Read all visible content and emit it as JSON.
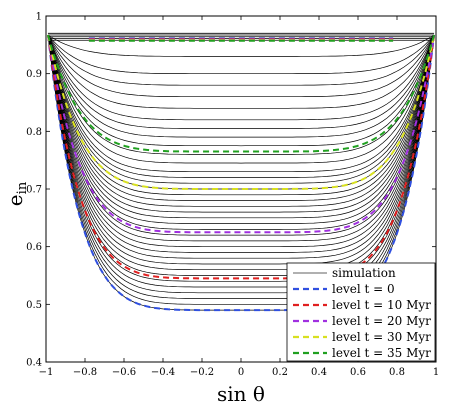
{
  "chart_data": {
    "type": "line",
    "xlabel": "sin θ",
    "ylabel": "e",
    "ylabel_sub": "in",
    "xlim": [
      -1,
      1
    ],
    "ylim": [
      0.4,
      1.0
    ],
    "xticks": [
      -1,
      -0.8,
      -0.6,
      -0.4,
      -0.2,
      0,
      0.2,
      0.4,
      0.6,
      0.8,
      1
    ],
    "xtick_labels": [
      "−1",
      "−0.8",
      "−0.6",
      "−0.4",
      "−0.2",
      "0",
      "0.2",
      "0.4",
      "0.6",
      "0.8",
      "1"
    ],
    "yticks": [
      0.4,
      0.5,
      0.6,
      0.7,
      0.8,
      0.9,
      1.0
    ],
    "ytick_labels": [
      "0.4",
      "0.5",
      "0.6",
      "0.7",
      "0.8",
      "0.9",
      "1"
    ],
    "grid": false,
    "legend_position": "bottom-right",
    "simulation_bottom_values": [
      0.49,
      0.5,
      0.51,
      0.52,
      0.53,
      0.54,
      0.55,
      0.56,
      0.57,
      0.58,
      0.59,
      0.6,
      0.61,
      0.62,
      0.63,
      0.64,
      0.65,
      0.66,
      0.67,
      0.68,
      0.69,
      0.7,
      0.71,
      0.72,
      0.73,
      0.745,
      0.76,
      0.775,
      0.79,
      0.805,
      0.82,
      0.84,
      0.86,
      0.88,
      0.9,
      0.93
    ],
    "series": [
      {
        "name": "simulation",
        "color": "#808080",
        "style": "solid"
      },
      {
        "name": "level t = 0",
        "color": "#3050e0",
        "style": "dashed",
        "bottom": 0.49
      },
      {
        "name": "level t = 10 Myr",
        "color": "#e02020",
        "style": "dashed",
        "bottom": 0.545
      },
      {
        "name": "level t = 20 Myr",
        "color": "#a030e0",
        "style": "dashed",
        "bottom": 0.625
      },
      {
        "name": "level t = 30 Myr",
        "color": "#d8e020",
        "style": "dashed",
        "bottom": 0.7
      },
      {
        "name": "level t = 35 Myr",
        "color": "#20a020",
        "style": "dashed",
        "bottom": 0.765
      }
    ],
    "legend_entries": [
      {
        "label": "simulation",
        "color": "#808080",
        "dashed": false
      },
      {
        "label": "level t = 0",
        "color": "#3050e0",
        "dashed": true
      },
      {
        "label": "level t = 10 Myr",
        "color": "#e02020",
        "dashed": true
      },
      {
        "label": "level t = 20 Myr",
        "color": "#a030e0",
        "dashed": true
      },
      {
        "label": "level t = 30 Myr",
        "color": "#d8e020",
        "dashed": true
      },
      {
        "label": "level t = 35 Myr",
        "color": "#20a020",
        "dashed": true
      }
    ]
  }
}
